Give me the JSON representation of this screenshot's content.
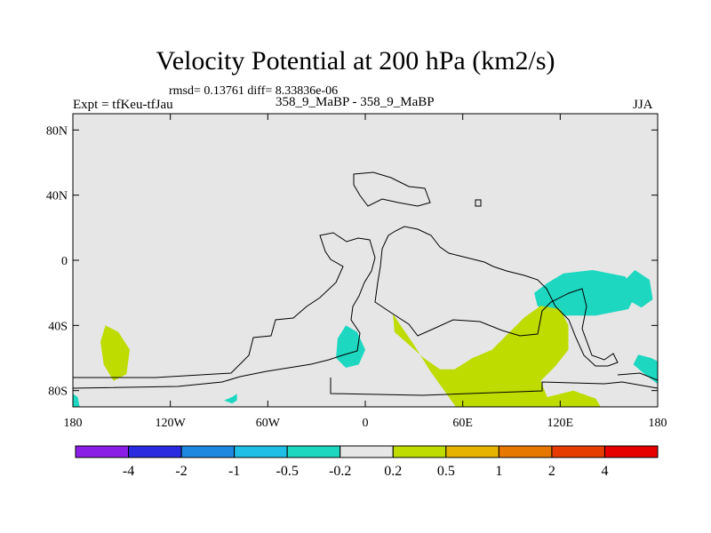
{
  "chart_data": {
    "type": "contour_map",
    "title": "Velocity Potential at 200 hPa (km2/s)",
    "stats": "rmsd= 0.13761 diff= 8.33836e-06",
    "experiment": "Expt = tfKeu-tfJau",
    "case": "358_9_MaBP - 358_9_MaBP",
    "season": "JJA",
    "x_ticks": [
      {
        "value": -180,
        "label": "180"
      },
      {
        "value": -120,
        "label": "120W"
      },
      {
        "value": -60,
        "label": "60W"
      },
      {
        "value": 0,
        "label": "0"
      },
      {
        "value": 60,
        "label": "60E"
      },
      {
        "value": 120,
        "label": "120E"
      },
      {
        "value": 180,
        "label": "180"
      }
    ],
    "y_ticks": [
      {
        "value": 80,
        "label": "80N"
      },
      {
        "value": 40,
        "label": "40N"
      },
      {
        "value": 0,
        "label": "0"
      },
      {
        "value": -40,
        "label": "40S"
      },
      {
        "value": -80,
        "label": "80S"
      }
    ],
    "xlim": [
      -180,
      180
    ],
    "ylim": [
      -90,
      90
    ],
    "levels_labels": [
      "-4",
      "-2",
      "-1",
      "-0.5",
      "-0.2",
      "0.2",
      "0.5",
      "1",
      "2",
      "4"
    ],
    "colorbar_colors": [
      "#8a1ee6",
      "#2a2ae0",
      "#1e88e0",
      "#1ebee6",
      "#1ed7c0",
      "#e6e6e6",
      "#bedc00",
      "#e6b400",
      "#e67800",
      "#e63c00",
      "#e60000"
    ],
    "field_color": "#e6e6e6",
    "regions": [
      {
        "value_range": "-0.5 to -0.2",
        "color": "#1ed7c0",
        "polygon": [
          [
            112,
            -14
          ],
          [
            122,
            -8
          ],
          [
            140,
            -6
          ],
          [
            160,
            -10
          ],
          [
            167,
            -20
          ],
          [
            162,
            -30
          ],
          [
            142,
            -34
          ],
          [
            118,
            -34
          ],
          [
            106,
            -28
          ],
          [
            104,
            -20
          ]
        ]
      },
      {
        "value_range": "-0.5 to -0.2",
        "color": "#1ed7c0",
        "polygon": [
          [
            166,
            -6
          ],
          [
            175,
            -12
          ],
          [
            177,
            -24
          ],
          [
            170,
            -29
          ],
          [
            161,
            -24
          ],
          [
            158,
            -14
          ]
        ]
      },
      {
        "value_range": "-0.5 to -0.2",
        "color": "#1ed7c0",
        "polygon": [
          [
            -12,
            -40
          ],
          [
            -5,
            -44
          ],
          [
            0,
            -55
          ],
          [
            -4,
            -64
          ],
          [
            -12,
            -66
          ],
          [
            -18,
            -60
          ],
          [
            -17,
            -48
          ]
        ]
      },
      {
        "value_range": "-0.5 to -0.2",
        "color": "#1ed7c0",
        "polygon": [
          [
            -82,
            -84
          ],
          [
            -79,
            -82
          ],
          [
            -79,
            -86
          ],
          [
            -82,
            -88
          ],
          [
            -87,
            -86
          ]
        ]
      },
      {
        "value_range": "-0.5 to -0.2",
        "color": "#1ed7c0",
        "polygon": [
          [
            -180,
            -82
          ],
          [
            -177,
            -84
          ],
          [
            -175,
            -94
          ],
          [
            -180,
            -98
          ]
        ]
      },
      {
        "value_range": "-0.5 to -0.2",
        "color": "#1ed7c0",
        "polygon": [
          [
            176,
            -60
          ],
          [
            180,
            -62
          ],
          [
            180,
            -76
          ],
          [
            172,
            -70
          ],
          [
            165,
            -64
          ],
          [
            168,
            -58
          ]
        ]
      },
      {
        "value_range": "0.2 to 0.5",
        "color": "#bedc00",
        "polygon": [
          [
            -160,
            -40
          ],
          [
            -152,
            -44
          ],
          [
            -145,
            -55
          ],
          [
            -147,
            -70
          ],
          [
            -155,
            -74
          ],
          [
            -161,
            -64
          ],
          [
            -163,
            -50
          ]
        ]
      },
      {
        "value_range": "0.2 to 0.5",
        "color": "#bedc00",
        "polygon": [
          [
            17,
            -33
          ],
          [
            30,
            -52
          ],
          [
            40,
            -68
          ],
          [
            50,
            -82
          ],
          [
            60,
            -96
          ],
          [
            75,
            -102
          ],
          [
            95,
            -106
          ],
          [
            120,
            -102
          ],
          [
            140,
            -100
          ],
          [
            146,
            -92
          ],
          [
            142,
            -85
          ],
          [
            128,
            -80
          ],
          [
            112,
            -84
          ],
          [
            108,
            -74
          ],
          [
            117,
            -65
          ],
          [
            125,
            -55
          ],
          [
            125,
            -40
          ],
          [
            120,
            -30
          ],
          [
            108,
            -28
          ],
          [
            98,
            -35
          ],
          [
            88,
            -45
          ],
          [
            78,
            -55
          ],
          [
            66,
            -60
          ],
          [
            55,
            -67
          ],
          [
            46,
            -67
          ],
          [
            36,
            -60
          ],
          [
            27,
            -52
          ],
          [
            18,
            -44
          ]
        ]
      }
    ]
  }
}
